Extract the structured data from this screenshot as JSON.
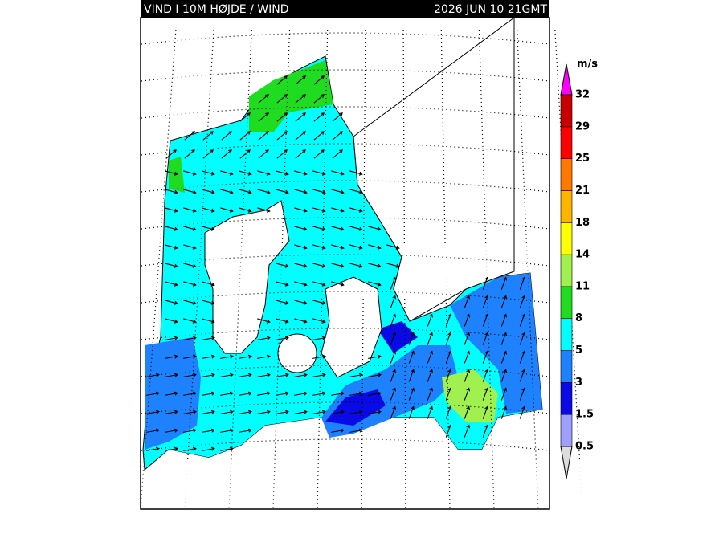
{
  "header": {
    "title": "VIND I 10M HØJDE / WIND",
    "date": "2026 JUN 10 21GMT"
  },
  "legend": {
    "unit": "m/s",
    "levels": [
      0.5,
      1.5,
      3,
      5,
      8,
      11,
      14,
      18,
      21,
      25,
      29,
      32
    ],
    "colors": [
      "#dcdcdc",
      "#9f9fff",
      "#0a0ae6",
      "#1e82ff",
      "#00ffff",
      "#20dc20",
      "#a0f050",
      "#ffff00",
      "#ffb400",
      "#ff7800",
      "#ff0000",
      "#c80000",
      "#ff00ff"
    ]
  }
}
